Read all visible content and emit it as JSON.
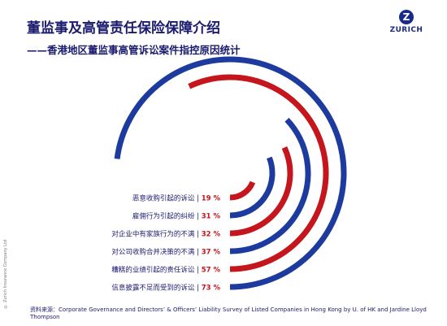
{
  "header": {
    "title": "董监事及高管责任保险保障介绍",
    "subtitle": "——香港地区董监事高管诉讼案件指控原因统计"
  },
  "logo": {
    "text": "ZURICH",
    "mark": "Z"
  },
  "side_text": "© Zurich Insurance Company Ltd",
  "source": "资料来源：Corporate Governance and Directors’ & Officers’ Liability Survey of Listed Companies in Hong Kong by U. of HK and Jardine Lloyd Thompson",
  "colors": {
    "red": "#c4161c",
    "blue": "#1d3b9e",
    "navy": "#1a1a6e"
  },
  "chart_data": {
    "type": "bar",
    "orientation": "radial",
    "categories": [
      "恶意收购引起的诉讼",
      "雇佣行为引起的纠纷",
      "对企业中有家族行为的不满",
      "对公司收购合并决策的不满",
      "糟糕的业绩引起的责任诉讼",
      "信息披露不足而受到的诉讼"
    ],
    "values": [
      19,
      31,
      32,
      37,
      57,
      73
    ],
    "value_labels": [
      "19 %",
      "31 %",
      "32 %",
      "37 %",
      "57 %",
      "73 %"
    ],
    "unit": "%",
    "bar_colors": [
      "red",
      "blue",
      "red",
      "blue",
      "red",
      "blue"
    ]
  }
}
